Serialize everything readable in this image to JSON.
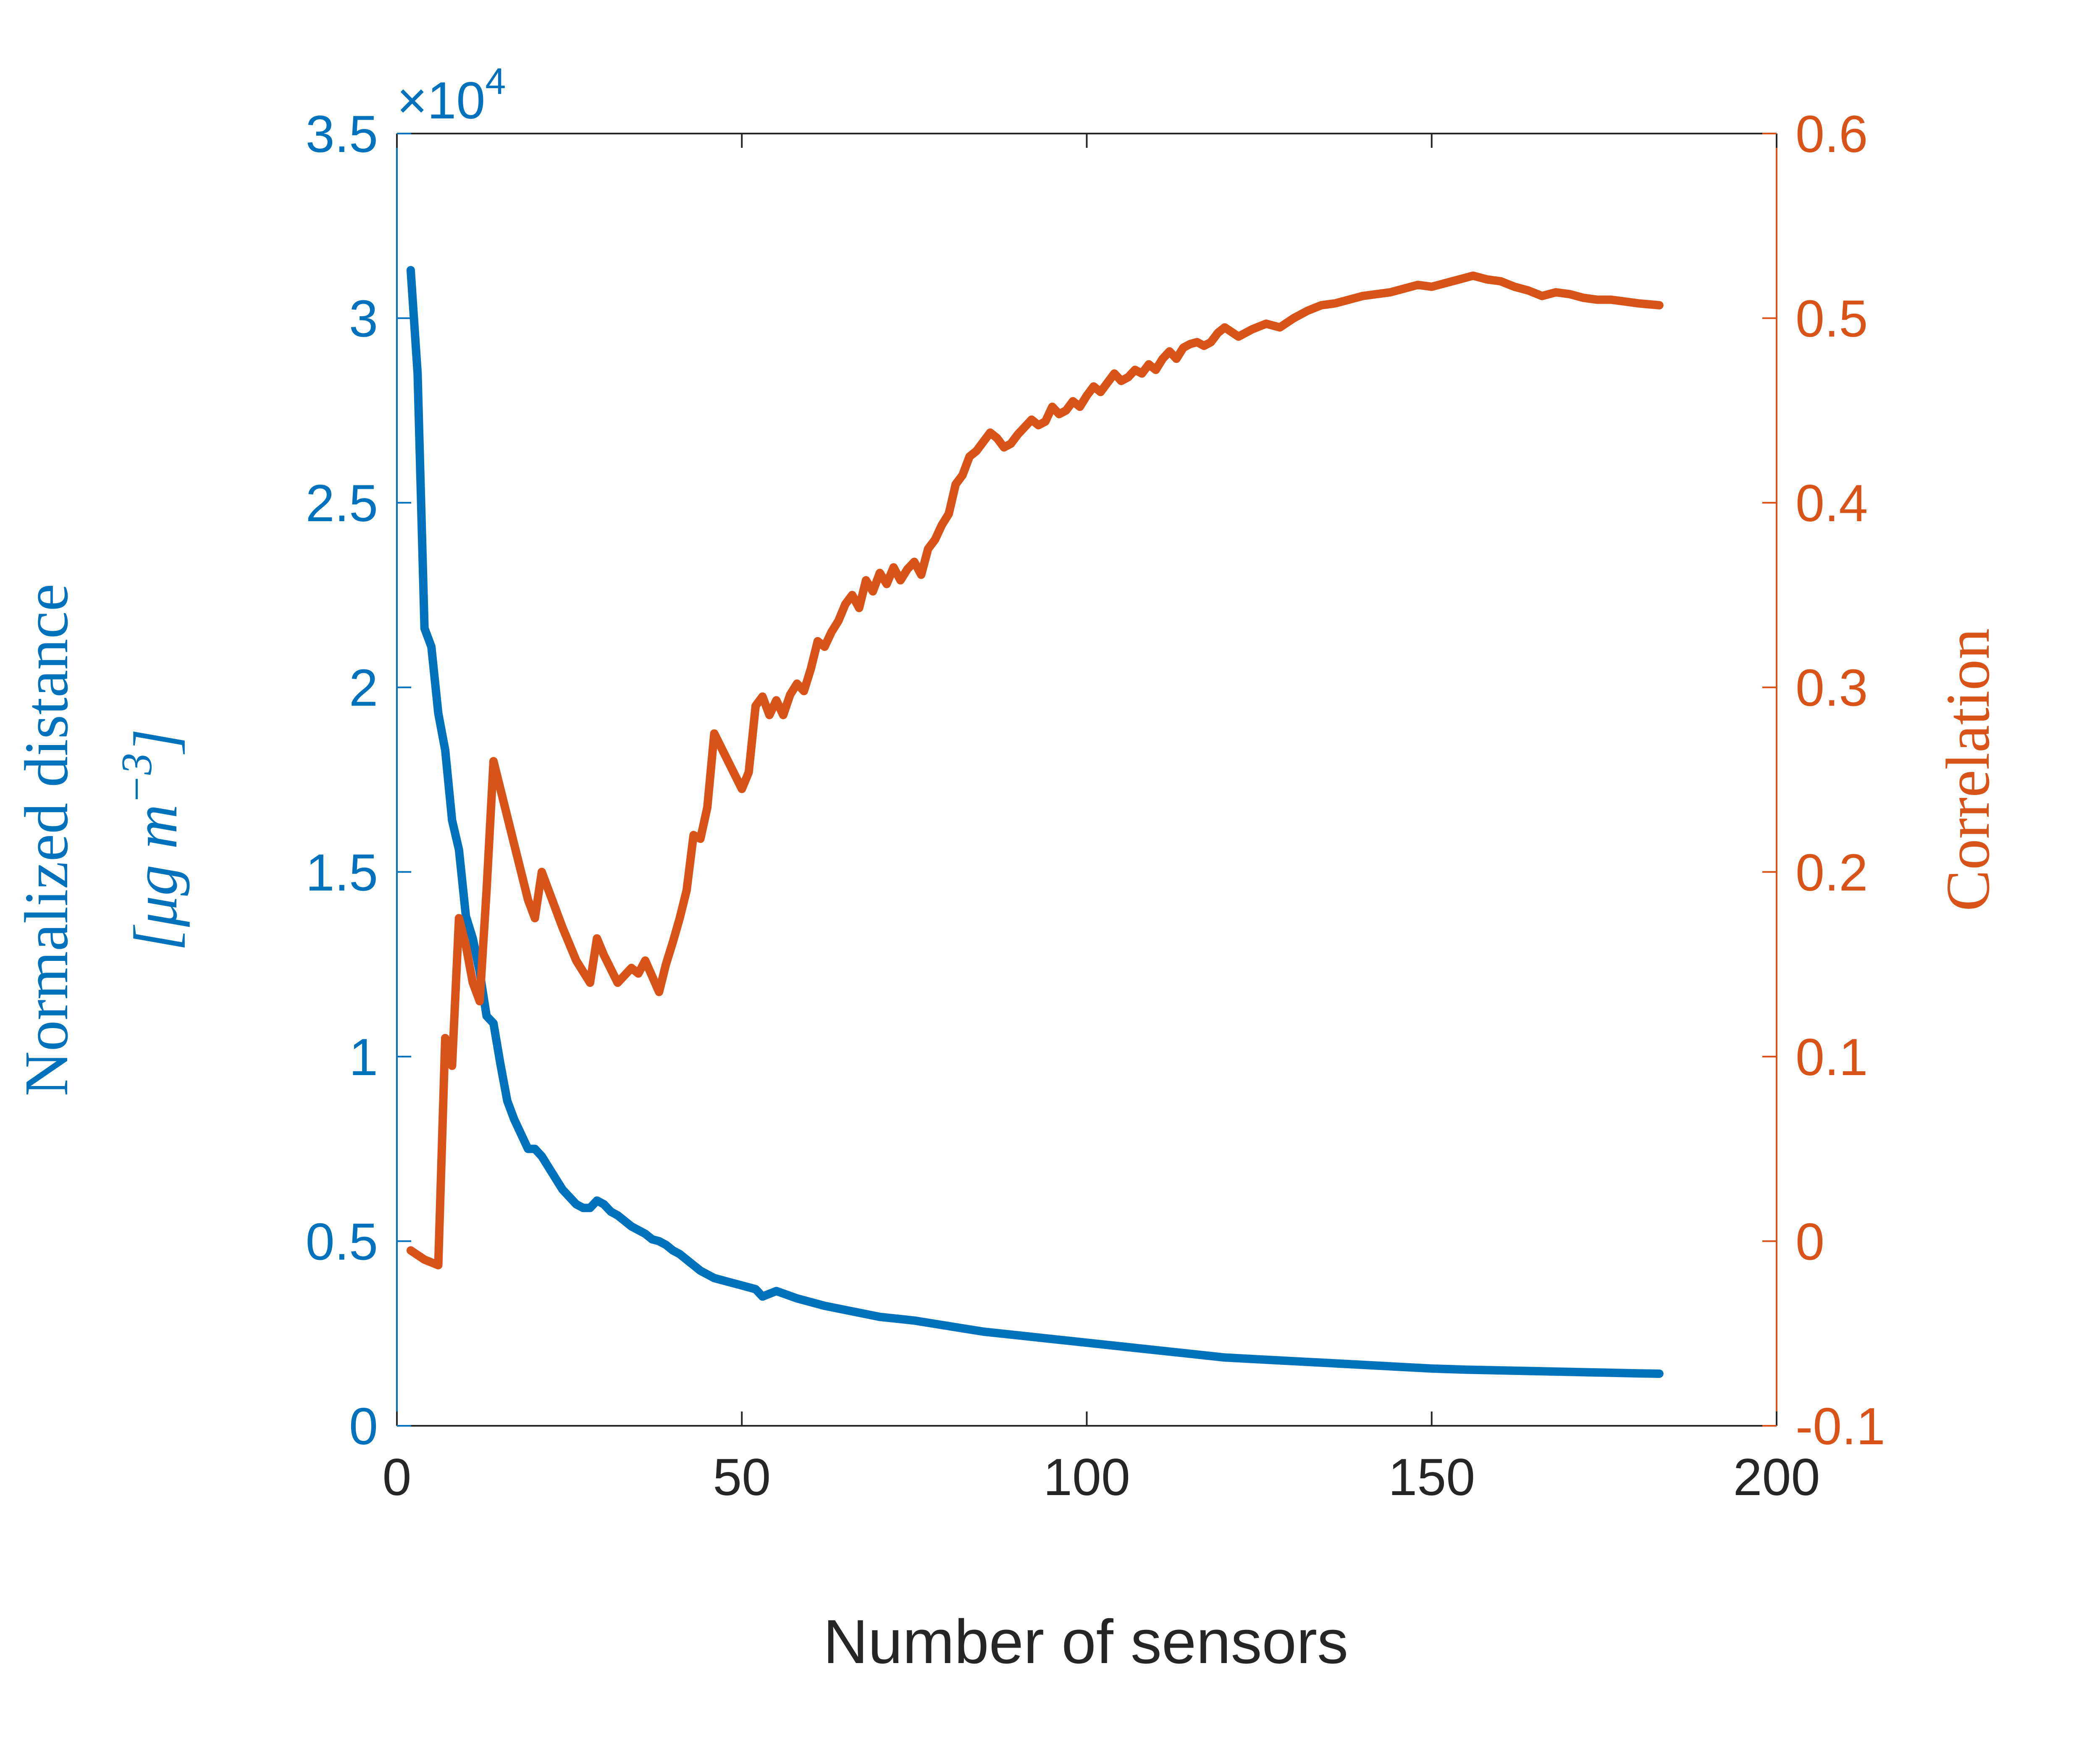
{
  "chart_data": {
    "type": "line",
    "xlabel": "Number of sensors",
    "ylabel_left": "Normalized distance",
    "ylabel_left_units": "[μg m",
    "ylabel_left_units_exp": "−3",
    "ylabel_left_units_close": "]",
    "ylabel_right": "Correlation",
    "exponent_prefix": "×10",
    "exponent_power": "4",
    "xlim": [
      0,
      200
    ],
    "ylim_left": [
      0,
      3.5
    ],
    "ylim_right": [
      -0.1,
      0.6
    ],
    "xticks": [
      "0",
      "50",
      "100",
      "150",
      "200"
    ],
    "yticks_left": [
      "0",
      "0.5",
      "1",
      "1.5",
      "2",
      "2.5",
      "3",
      "3.5"
    ],
    "yticks_right": [
      "-0.1",
      "0",
      "0.1",
      "0.2",
      "0.3",
      "0.4",
      "0.5",
      "0.6"
    ],
    "colors": {
      "left": "#0072BD",
      "right": "#D95319",
      "axis": "#262626"
    },
    "series": [
      {
        "axis": "left",
        "color": "#0072BD",
        "x": [
          2,
          3,
          4,
          5,
          6,
          7,
          8,
          9,
          10,
          11,
          12,
          13,
          14,
          15,
          16,
          17,
          18,
          19,
          20,
          21,
          22,
          23,
          24,
          25,
          26,
          27,
          28,
          29,
          30,
          31,
          32,
          33,
          34,
          35,
          36,
          37,
          38,
          39,
          40,
          41,
          42,
          44,
          46,
          48,
          50,
          52,
          53,
          55,
          58,
          62,
          66,
          70,
          75,
          80,
          85,
          90,
          95,
          100,
          105,
          110,
          115,
          120,
          125,
          130,
          135,
          140,
          145,
          150,
          155,
          160,
          165,
          170,
          175,
          180,
          183
        ],
        "y": [
          3.13,
          2.85,
          2.16,
          2.11,
          1.93,
          1.83,
          1.64,
          1.56,
          1.38,
          1.32,
          1.23,
          1.11,
          1.09,
          0.98,
          0.88,
          0.83,
          0.79,
          0.75,
          0.75,
          0.73,
          0.7,
          0.67,
          0.64,
          0.62,
          0.6,
          0.59,
          0.59,
          0.61,
          0.6,
          0.58,
          0.57,
          0.555,
          0.54,
          0.53,
          0.52,
          0.505,
          0.5,
          0.49,
          0.475,
          0.465,
          0.45,
          0.42,
          0.4,
          0.39,
          0.38,
          0.37,
          0.35,
          0.365,
          0.345,
          0.325,
          0.31,
          0.295,
          0.285,
          0.27,
          0.255,
          0.245,
          0.235,
          0.225,
          0.215,
          0.205,
          0.195,
          0.185,
          0.18,
          0.175,
          0.17,
          0.165,
          0.16,
          0.155,
          0.152,
          0.15,
          0.148,
          0.146,
          0.144,
          0.142,
          0.141
        ]
      },
      {
        "axis": "right",
        "color": "#D95319",
        "x": [
          2,
          4,
          6,
          7,
          8,
          9,
          10,
          11,
          12,
          13,
          14,
          15,
          16,
          17,
          18,
          19,
          20,
          21,
          22,
          24,
          26,
          28,
          29,
          30,
          32,
          34,
          35,
          36,
          38,
          39,
          40,
          41,
          42,
          43,
          44,
          45,
          46,
          48,
          50,
          51,
          52,
          53,
          54,
          55,
          56,
          57,
          58,
          59,
          60,
          61,
          62,
          63,
          64,
          65,
          66,
          67,
          68,
          69,
          70,
          71,
          72,
          73,
          74,
          75,
          76,
          77,
          78,
          79,
          80,
          81,
          82,
          83,
          84,
          85,
          86,
          87,
          88,
          89,
          90,
          91,
          92,
          93,
          94,
          95,
          96,
          97,
          98,
          99,
          100,
          101,
          102,
          103,
          104,
          105,
          106,
          107,
          108,
          109,
          110,
          111,
          112,
          113,
          114,
          115,
          116,
          117,
          118,
          119,
          120,
          122,
          124,
          126,
          128,
          130,
          132,
          134,
          136,
          138,
          140,
          142,
          144,
          146,
          148,
          150,
          152,
          154,
          156,
          158,
          160,
          162,
          164,
          166,
          168,
          170,
          172,
          174,
          176,
          178,
          180,
          183
        ],
        "y": [
          -0.005,
          -0.01,
          -0.013,
          0.11,
          0.095,
          0.175,
          0.16,
          0.14,
          0.13,
          0.19,
          0.26,
          0.245,
          0.23,
          0.215,
          0.2,
          0.185,
          0.175,
          0.2,
          0.19,
          0.17,
          0.152,
          0.14,
          0.164,
          0.155,
          0.14,
          0.148,
          0.145,
          0.152,
          0.135,
          0.15,
          0.162,
          0.175,
          0.19,
          0.22,
          0.218,
          0.235,
          0.275,
          0.26,
          0.245,
          0.254,
          0.29,
          0.295,
          0.285,
          0.293,
          0.285,
          0.296,
          0.302,
          0.298,
          0.31,
          0.325,
          0.322,
          0.33,
          0.336,
          0.345,
          0.35,
          0.343,
          0.358,
          0.352,
          0.362,
          0.356,
          0.365,
          0.358,
          0.364,
          0.368,
          0.361,
          0.375,
          0.38,
          0.388,
          0.394,
          0.41,
          0.415,
          0.425,
          0.428,
          0.433,
          0.438,
          0.435,
          0.43,
          0.432,
          0.437,
          0.441,
          0.445,
          0.442,
          0.444,
          0.452,
          0.448,
          0.45,
          0.455,
          0.452,
          0.458,
          0.463,
          0.46,
          0.465,
          0.47,
          0.466,
          0.468,
          0.472,
          0.47,
          0.475,
          0.472,
          0.478,
          0.482,
          0.478,
          0.484,
          0.486,
          0.487,
          0.485,
          0.487,
          0.492,
          0.495,
          0.49,
          0.494,
          0.497,
          0.495,
          0.5,
          0.504,
          0.507,
          0.508,
          0.51,
          0.512,
          0.513,
          0.514,
          0.516,
          0.518,
          0.517,
          0.519,
          0.521,
          0.523,
          0.521,
          0.52,
          0.517,
          0.515,
          0.512,
          0.514,
          0.513,
          0.511,
          0.51,
          0.51,
          0.509,
          0.508,
          0.507
        ]
      }
    ]
  }
}
